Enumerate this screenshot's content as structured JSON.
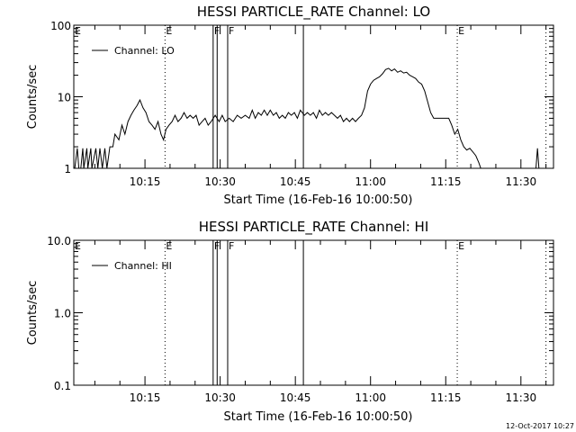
{
  "footer": {
    "timestamp": "12-Oct-2017 10:27"
  },
  "chart_data": [
    {
      "type": "line",
      "title": "HESSI PARTICLE_RATE Channel: LO",
      "xlabel": "Start Time (16-Feb-16 10:00:50)",
      "ylabel": "Counts/sec",
      "yscale": "log",
      "ylim": [
        1,
        100
      ],
      "yticks": [
        {
          "v": 1,
          "label": "1"
        },
        {
          "v": 10,
          "label": "10"
        },
        {
          "v": 100,
          "label": "100"
        }
      ],
      "xlim_min": [
        0.8,
        96.5
      ],
      "xticks": [
        {
          "min": 15,
          "label": "10:15"
        },
        {
          "min": 30,
          "label": "10:30"
        },
        {
          "min": 45,
          "label": "10:45"
        },
        {
          "min": 60,
          "label": "11:00"
        },
        {
          "min": 75,
          "label": "11:15"
        },
        {
          "min": 90,
          "label": "11:30"
        }
      ],
      "legend": {
        "label": "Channel: LO",
        "position": "top-left"
      },
      "grid": false,
      "flag_lines": [
        {
          "min": 19.0,
          "style": "dotted",
          "label": "E"
        },
        {
          "min": 28.6,
          "style": "solid",
          "label": "F"
        },
        {
          "min": 29.4,
          "style": "solid",
          "label": ""
        },
        {
          "min": 31.5,
          "style": "solid",
          "label": "F"
        },
        {
          "min": 46.6,
          "style": "solid",
          "label": ""
        },
        {
          "min": 77.3,
          "style": "dotted",
          "label": "E"
        },
        {
          "min": 95.0,
          "style": "dotted",
          "label": ""
        }
      ],
      "edge_flag": "E",
      "series": [
        {
          "name": "Channel: LO",
          "points": [
            [
              1.0,
              0.5
            ],
            [
              1.5,
              1.9
            ],
            [
              1.8,
              1.0
            ],
            [
              2.2,
              0.5
            ],
            [
              2.6,
              1.9
            ],
            [
              2.8,
              0.5
            ],
            [
              3.4,
              1.9
            ],
            [
              3.6,
              1.0
            ],
            [
              4.2,
              1.9
            ],
            [
              4.4,
              0.6
            ],
            [
              5.2,
              1.9
            ],
            [
              5.6,
              1.0
            ],
            [
              6.0,
              1.9
            ],
            [
              6.5,
              1.0
            ],
            [
              7.0,
              1.9
            ],
            [
              7.4,
              0.5
            ],
            [
              8.0,
              2.0
            ],
            [
              8.6,
              2.0
            ],
            [
              9.0,
              3.0
            ],
            [
              9.8,
              2.5
            ],
            [
              10.4,
              4.0
            ],
            [
              11.0,
              3.0
            ],
            [
              11.6,
              4.5
            ],
            [
              12.2,
              5.5
            ],
            [
              12.8,
              6.5
            ],
            [
              13.4,
              7.5
            ],
            [
              14.0,
              9.0
            ],
            [
              14.6,
              7.0
            ],
            [
              15.2,
              6.0
            ],
            [
              15.8,
              4.5
            ],
            [
              16.4,
              4.0
            ],
            [
              17.0,
              3.5
            ],
            [
              17.6,
              4.5
            ],
            [
              18.2,
              3.0
            ],
            [
              18.7,
              2.5
            ],
            [
              19.2,
              3.5
            ],
            [
              19.8,
              4.0
            ],
            [
              20.4,
              4.5
            ],
            [
              21.0,
              5.5
            ],
            [
              21.6,
              4.5
            ],
            [
              22.2,
              5.0
            ],
            [
              22.8,
              6.0
            ],
            [
              23.4,
              5.0
            ],
            [
              24.0,
              5.5
            ],
            [
              24.6,
              5.0
            ],
            [
              25.2,
              5.5
            ],
            [
              25.8,
              4.0
            ],
            [
              26.4,
              4.5
            ],
            [
              27.0,
              5.0
            ],
            [
              27.6,
              4.0
            ],
            [
              28.2,
              4.5
            ],
            [
              29.0,
              5.5
            ],
            [
              29.8,
              4.5
            ],
            [
              30.4,
              5.5
            ],
            [
              31.0,
              4.5
            ],
            [
              31.8,
              5.0
            ],
            [
              32.6,
              4.5
            ],
            [
              33.4,
              5.5
            ],
            [
              34.2,
              5.0
            ],
            [
              35.0,
              5.5
            ],
            [
              35.8,
              5.0
            ],
            [
              36.4,
              6.5
            ],
            [
              37.0,
              5.0
            ],
            [
              37.6,
              6.0
            ],
            [
              38.2,
              5.5
            ],
            [
              38.8,
              6.5
            ],
            [
              39.4,
              5.5
            ],
            [
              40.0,
              6.5
            ],
            [
              40.6,
              5.5
            ],
            [
              41.2,
              6.0
            ],
            [
              41.8,
              5.0
            ],
            [
              42.4,
              5.5
            ],
            [
              43.0,
              5.0
            ],
            [
              43.6,
              6.0
            ],
            [
              44.2,
              5.5
            ],
            [
              44.8,
              6.0
            ],
            [
              45.4,
              5.0
            ],
            [
              46.0,
              6.5
            ],
            [
              46.8,
              5.5
            ],
            [
              47.4,
              6.0
            ],
            [
              48.0,
              5.5
            ],
            [
              48.6,
              6.0
            ],
            [
              49.2,
              5.0
            ],
            [
              49.8,
              6.5
            ],
            [
              50.4,
              5.5
            ],
            [
              51.0,
              6.0
            ],
            [
              51.6,
              5.5
            ],
            [
              52.2,
              6.0
            ],
            [
              52.8,
              5.5
            ],
            [
              53.4,
              5.0
            ],
            [
              54.0,
              5.5
            ],
            [
              54.6,
              4.5
            ],
            [
              55.2,
              5.0
            ],
            [
              55.8,
              4.5
            ],
            [
              56.4,
              5.0
            ],
            [
              57.0,
              4.5
            ],
            [
              57.6,
              5.0
            ],
            [
              58.2,
              5.5
            ],
            [
              58.8,
              7.0
            ],
            [
              59.4,
              12.0
            ],
            [
              60.0,
              15.0
            ],
            [
              60.6,
              17.0
            ],
            [
              61.2,
              18.0
            ],
            [
              61.8,
              19.0
            ],
            [
              62.4,
              21.0
            ],
            [
              63.0,
              24.0
            ],
            [
              63.6,
              25.0
            ],
            [
              64.2,
              23.0
            ],
            [
              64.8,
              24.5
            ],
            [
              65.4,
              22.0
            ],
            [
              66.0,
              23.0
            ],
            [
              66.6,
              21.5
            ],
            [
              67.2,
              22.0
            ],
            [
              67.8,
              20.0
            ],
            [
              68.4,
              19.0
            ],
            [
              69.0,
              18.0
            ],
            [
              69.6,
              16.0
            ],
            [
              70.2,
              15.0
            ],
            [
              70.8,
              12.0
            ],
            [
              71.4,
              8.5
            ],
            [
              72.0,
              6.0
            ],
            [
              72.6,
              5.0
            ],
            [
              73.2,
              5.0
            ],
            [
              73.8,
              5.0
            ],
            [
              74.4,
              5.0
            ],
            [
              75.0,
              5.0
            ],
            [
              75.6,
              5.0
            ],
            [
              76.2,
              4.0
            ],
            [
              76.8,
              3.0
            ],
            [
              77.4,
              3.5
            ],
            [
              78.0,
              2.5
            ],
            [
              78.6,
              2.0
            ],
            [
              79.2,
              1.8
            ],
            [
              79.8,
              1.9
            ],
            [
              80.4,
              1.7
            ],
            [
              81.0,
              1.5
            ],
            [
              81.6,
              1.2
            ],
            [
              82.0,
              0.5
            ],
            [
              92.8,
              0.5
            ],
            [
              93.0,
              1.0
            ],
            [
              93.3,
              1.9
            ],
            [
              93.6,
              0.5
            ]
          ]
        }
      ]
    },
    {
      "type": "line",
      "title": "HESSI PARTICLE_RATE Channel: HI",
      "xlabel": "Start Time (16-Feb-16 10:00:50)",
      "ylabel": "Counts/sec",
      "yscale": "log",
      "ylim": [
        0.1,
        10
      ],
      "yticks": [
        {
          "v": 0.1,
          "label": "0.1"
        },
        {
          "v": 1,
          "label": "1.0"
        },
        {
          "v": 10,
          "label": "10.0"
        }
      ],
      "xlim_min": [
        0.8,
        96.5
      ],
      "xticks": [
        {
          "min": 15,
          "label": "10:15"
        },
        {
          "min": 30,
          "label": "10:30"
        },
        {
          "min": 45,
          "label": "10:45"
        },
        {
          "min": 60,
          "label": "11:00"
        },
        {
          "min": 75,
          "label": "11:15"
        },
        {
          "min": 90,
          "label": "11:30"
        }
      ],
      "legend": {
        "label": "Channel: HI",
        "position": "top-left"
      },
      "grid": false,
      "flag_lines": [
        {
          "min": 19.0,
          "style": "dotted",
          "label": "E"
        },
        {
          "min": 28.6,
          "style": "solid",
          "label": "F"
        },
        {
          "min": 29.4,
          "style": "solid",
          "label": ""
        },
        {
          "min": 31.5,
          "style": "solid",
          "label": "F"
        },
        {
          "min": 46.6,
          "style": "solid",
          "label": ""
        },
        {
          "min": 77.3,
          "style": "dotted",
          "label": "E"
        },
        {
          "min": 95.0,
          "style": "dotted",
          "label": ""
        }
      ],
      "edge_flag": "E",
      "series": [
        {
          "name": "Channel: HI",
          "points": []
        }
      ]
    }
  ]
}
